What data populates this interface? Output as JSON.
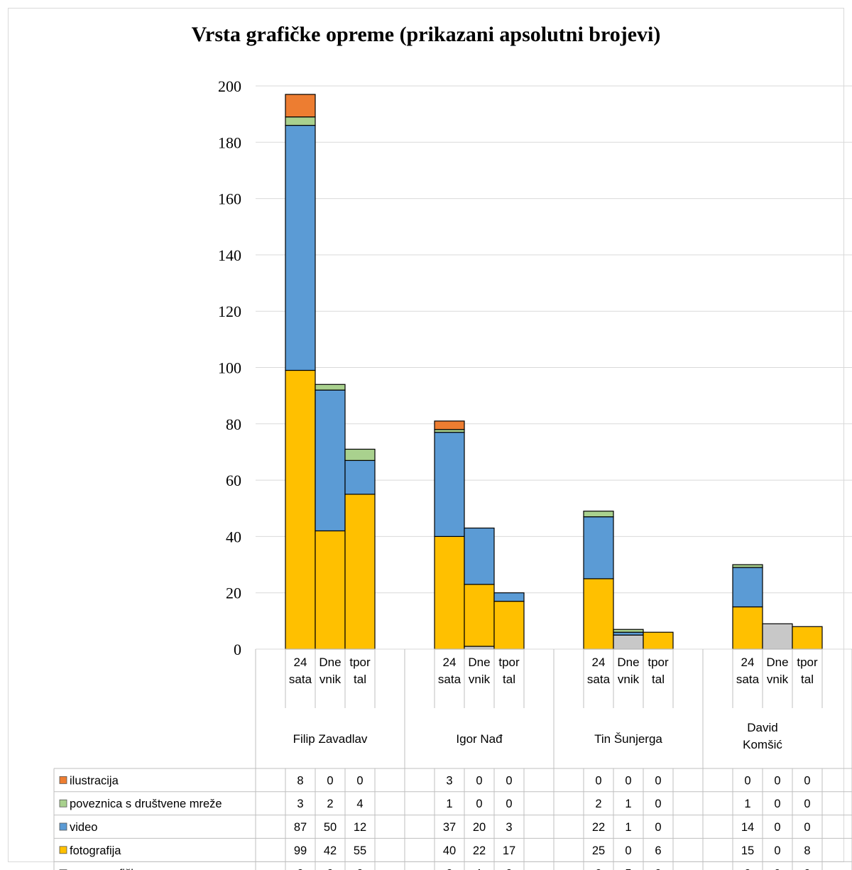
{
  "chart_data": {
    "type": "bar",
    "stacked": true,
    "title": "Vrsta grafičke opreme (prikazani apsolutni brojevi)",
    "ylim": [
      0,
      200
    ],
    "yticks": [
      0,
      20,
      40,
      60,
      80,
      100,
      120,
      140,
      160,
      180,
      200
    ],
    "grid": true,
    "groups": [
      {
        "name": "Filip Zavadlav",
        "name_lines": [
          "Filip Zavadlav"
        ]
      },
      {
        "name": "Igor Nađ",
        "name_lines": [
          "Igor Nađ"
        ]
      },
      {
        "name": "Tin Šunjerga",
        "name_lines": [
          "Tin Šunjerga"
        ]
      },
      {
        "name": "David Komšić",
        "name_lines": [
          "David",
          "Komšić"
        ]
      }
    ],
    "subcategories": [
      {
        "label": "24 sata",
        "lines": [
          "24",
          "sata"
        ]
      },
      {
        "label": "Dnevnik",
        "lines": [
          "Dne",
          "vnik"
        ]
      },
      {
        "label": "tportal",
        "lines": [
          "tpor",
          "tal"
        ]
      }
    ],
    "series": [
      {
        "name": "nema grafičke opreme",
        "color": "#c8c8c8",
        "values": [
          [
            0,
            0,
            0
          ],
          [
            0,
            1,
            0
          ],
          [
            0,
            5,
            0
          ],
          [
            0,
            9,
            0
          ]
        ]
      },
      {
        "name": "fotografija",
        "color": "#ffc000",
        "values": [
          [
            99,
            42,
            55
          ],
          [
            40,
            22,
            17
          ],
          [
            25,
            0,
            6
          ],
          [
            15,
            0,
            8
          ]
        ]
      },
      {
        "name": "video",
        "color": "#5b9bd5",
        "values": [
          [
            87,
            50,
            12
          ],
          [
            37,
            20,
            3
          ],
          [
            22,
            1,
            0
          ],
          [
            14,
            0,
            0
          ]
        ]
      },
      {
        "name": "poveznica s društvene mreže",
        "color": "#a9d18e",
        "values": [
          [
            3,
            2,
            4
          ],
          [
            1,
            0,
            0
          ],
          [
            2,
            1,
            0
          ],
          [
            1,
            0,
            0
          ]
        ]
      },
      {
        "name": "ilustracija",
        "color": "#ed7d31",
        "values": [
          [
            8,
            0,
            0
          ],
          [
            3,
            0,
            0
          ],
          [
            0,
            0,
            0
          ],
          [
            0,
            0,
            0
          ]
        ]
      }
    ],
    "table_row_order": [
      "ilustracija",
      "poveznica s društvene mreže",
      "video",
      "fotografija",
      "nema grafičke opreme"
    ]
  }
}
